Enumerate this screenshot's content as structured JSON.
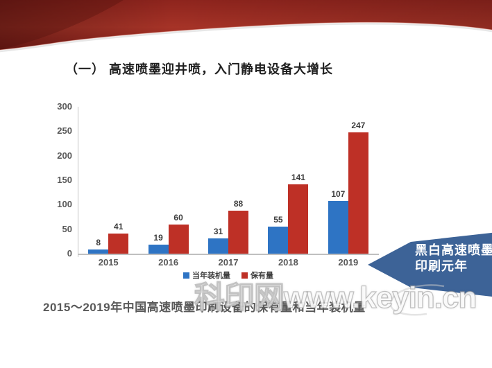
{
  "page": {
    "title": "（一） 高速喷墨迎井喷，入门静电设备大增长",
    "caption": "2015～2019年中国高速喷墨印刷设备的保有量和当年装机量",
    "watermark": "科印网www.keyin.cn"
  },
  "callout": {
    "line1": "黑白高速喷墨",
    "line2": "印刷元年",
    "color": "#3d6397"
  },
  "chart_data": {
    "type": "bar",
    "title": "",
    "xlabel": "",
    "ylabel": "",
    "categories": [
      "2015",
      "2016",
      "2017",
      "2018",
      "2019"
    ],
    "series": [
      {
        "name": "当年装机量",
        "color": "#2e74c4",
        "values": [
          8,
          19,
          31,
          55,
          107
        ]
      },
      {
        "name": "保有量",
        "color": "#be3026",
        "values": [
          41,
          60,
          88,
          141,
          247
        ]
      }
    ],
    "ylim": [
      0,
      300
    ],
    "yticks": [
      0,
      50,
      100,
      150,
      200,
      250,
      300
    ],
    "grid": false,
    "legend_position": "bottom"
  },
  "colors": {
    "banner_red": "#9b2a21",
    "callout_blue": "#3d6397",
    "bar_blue": "#2e74c4",
    "bar_red": "#be3026",
    "axis_gray": "#bfbfbf",
    "text_gray": "#595959"
  }
}
